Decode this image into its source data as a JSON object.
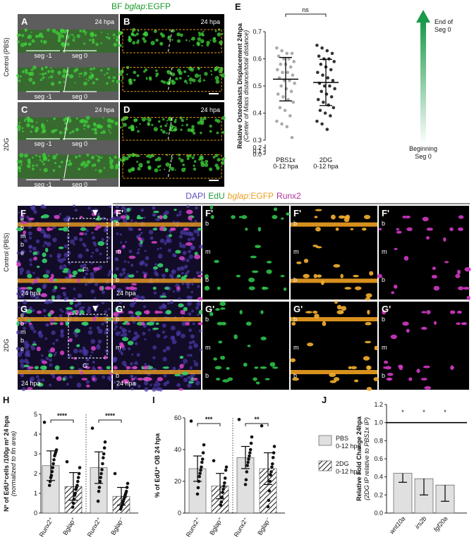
{
  "figure": {
    "title_parts": [
      "BF ",
      "bglap",
      ":EGFP"
    ],
    "rows_top": [
      "Control (PBS)",
      "2DG"
    ],
    "panels_top": [
      {
        "letter": "A",
        "time": "24 hpa",
        "segs": [
          "seg -1",
          "seg 0",
          "seg -1",
          "seg 0"
        ]
      },
      {
        "letter": "B",
        "time": "24 hpa"
      },
      {
        "letter": "C",
        "time": "24 hpa",
        "segs": [
          "seg -1",
          "seg 0",
          "seg -1",
          "seg 0"
        ]
      },
      {
        "letter": "D",
        "time": "24 hpa"
      }
    ],
    "channels": [
      {
        "text": "DAPI",
        "color": "#5b4fc0"
      },
      {
        "text": "EdU",
        "color": "#1c9a3c"
      },
      {
        "text": "bglap",
        "color": "#e8a020",
        "italic": true
      },
      {
        "text": ":EGFP",
        "color": "#e8a020"
      },
      {
        "text": "Runx2",
        "color": "#b0309a"
      }
    ],
    "rows_bottom": [
      "Control (PBS)",
      "2DG"
    ],
    "panels_bottom": [
      {
        "letter": "F",
        "time": "24 hpa",
        "tag": "F'",
        "marks": [
          "e",
          "b",
          "m",
          "b",
          "e"
        ]
      },
      {
        "letter": "F'",
        "time": "24 hpa",
        "marks": [
          "b",
          "m",
          "b"
        ]
      },
      {
        "letter": "F'",
        "marks": [
          "b",
          "m",
          "b"
        ]
      },
      {
        "letter": "F'",
        "marks": [
          "b",
          "m",
          "b"
        ]
      },
      {
        "letter": "F'",
        "marks": [
          "b",
          "m",
          "b"
        ]
      },
      {
        "letter": "G",
        "time": "24 hpa",
        "tag": "G'",
        "marks": [
          "e",
          "b",
          "m",
          "b",
          "e"
        ]
      },
      {
        "letter": "G'",
        "time": "24 hpa",
        "marks": [
          "b",
          "m",
          "b"
        ]
      },
      {
        "letter": "G'",
        "marks": [
          "b",
          "m",
          "b"
        ]
      },
      {
        "letter": "G'",
        "marks": [
          "b",
          "m",
          "b"
        ]
      },
      {
        "letter": "G'",
        "marks": [
          "b",
          "m",
          "b"
        ]
      }
    ],
    "arrow_top": [
      "End of",
      "Seg 0"
    ],
    "arrow_bottom": [
      "Beginning",
      "Seg 0"
    ]
  },
  "chart_data": [
    {
      "type": "strip",
      "letter": "E",
      "ylabel": "Relative Osteoblasts Displacement 24hpa",
      "ylabel_sub": "(Center of Mass distance/total distance)",
      "categories": [
        [
          "PBS1x",
          "0-12 hpa"
        ],
        [
          "2DG",
          "0-12 hpa"
        ]
      ],
      "ylim": [
        0,
        0.7
      ],
      "yticks": [
        {
          "value": 0,
          "label": "0.0"
        },
        0.1,
        0.2,
        0.3,
        0.4,
        0.5,
        0.6,
        0.7
      ],
      "significance": "ns",
      "series": [
        {
          "color": "#aaaaaa",
          "mean": 0.525,
          "sd": 0.08,
          "values": [
            0.64,
            0.63,
            0.62,
            0.62,
            0.61,
            0.6,
            0.6,
            0.59,
            0.58,
            0.58,
            0.57,
            0.56,
            0.55,
            0.55,
            0.54,
            0.53,
            0.52,
            0.52,
            0.51,
            0.5,
            0.49,
            0.48,
            0.47,
            0.46,
            0.45,
            0.44,
            0.42,
            0.41,
            0.39,
            0.37,
            0.36,
            0.35,
            0.31
          ]
        },
        {
          "color": "#333333",
          "mean": 0.513,
          "sd": 0.085,
          "values": [
            0.65,
            0.64,
            0.63,
            0.62,
            0.61,
            0.6,
            0.6,
            0.59,
            0.58,
            0.57,
            0.56,
            0.55,
            0.54,
            0.53,
            0.52,
            0.51,
            0.5,
            0.5,
            0.49,
            0.48,
            0.47,
            0.46,
            0.45,
            0.44,
            0.43,
            0.42,
            0.41,
            0.4,
            0.39,
            0.37,
            0.36,
            0.34
          ]
        }
      ]
    },
    {
      "type": "bar",
      "letter": "H",
      "ylabel": "Nº of EdU⁺cells /100μ m² 24 hpa",
      "ylabel_sub": "(normalized to fin area)",
      "categories": [
        [
          "Runx2⁺",
          "Bglap⁺"
        ],
        [
          "Runx2⁺",
          "Bglap⁻"
        ]
      ],
      "ylim": [
        0,
        5
      ],
      "yticks": [
        0,
        1,
        2,
        3,
        4,
        5
      ],
      "significance": [
        "****",
        "****"
      ],
      "series": [
        {
          "color": "#e0e0e0",
          "values": [
            2.4,
            2.3
          ],
          "errors": [
            0.75,
            0.8
          ],
          "points": [
            [
              4.6,
              3.8,
              3.2,
              3.1,
              3.0,
              2.9,
              2.7,
              2.5,
              2.3,
              2.1,
              1.9,
              1.8,
              1.6,
              1.4
            ],
            [
              4.3,
              3.6,
              3.3,
              3.0,
              2.8,
              2.5,
              2.2,
              2.0,
              1.8,
              1.6,
              1.3,
              1.1,
              0.6
            ]
          ]
        },
        {
          "color": "#e0e0e0",
          "pattern": "hatch",
          "values": [
            1.35,
            0.85
          ],
          "errors": [
            0.7,
            0.45
          ],
          "points": [
            [
              2.6,
              2.3,
              2.0,
              1.8,
              1.6,
              1.4,
              1.3,
              1.2,
              1.0,
              0.9,
              0.7,
              0.5,
              0.3
            ],
            [
              2.0,
              1.5,
              1.3,
              1.1,
              1.0,
              0.9,
              0.8,
              0.7,
              0.6,
              0.5,
              0.4,
              0.3,
              0.2
            ]
          ]
        }
      ]
    },
    {
      "type": "bar",
      "letter": "I",
      "ylabel": "% of EdU⁺ OB 24 hpa",
      "legend": true,
      "categories": [
        [
          "Runx2⁺",
          "Bglap⁺"
        ],
        [
          "Runx2⁺",
          "Bglap⁻"
        ]
      ],
      "ylim": [
        0,
        60
      ],
      "yticks": [
        0,
        20,
        40,
        60
      ],
      "significance": [
        "***",
        "**"
      ],
      "series": [
        {
          "name": "PBS",
          "treatment": "0-12 hpa",
          "color": "#e0e0e0",
          "values": [
            28,
            35
          ],
          "errors": [
            8,
            7
          ],
          "points": [
            [
              58,
              43,
              38,
              34,
              32,
              29,
              27,
              25,
              23,
              20,
              16,
              12
            ],
            [
              59,
              48,
              44,
              40,
              38,
              36,
              34,
              32,
              30,
              26,
              21,
              18
            ]
          ]
        },
        {
          "name": "2DG",
          "treatment": "0-12 hpa",
          "color": "#e0e0e0",
          "pattern": "hatch",
          "values": [
            17,
            28
          ],
          "errors": [
            8,
            10
          ],
          "points": [
            [
              33,
              29,
              27,
              22,
              19,
              17,
              15,
              13,
              10,
              7,
              5
            ],
            [
              55,
              42,
              38,
              35,
              31,
              29,
              26,
              24,
              20,
              14,
              8,
              4
            ]
          ]
        }
      ]
    },
    {
      "type": "bar",
      "letter": "J",
      "ylabel": "Relative Fold Change 24hpa",
      "ylabel_sub": "(2DG IP relative to PBS1x IP)",
      "categories": [
        "wnt10a",
        "irs2b",
        "fgf20a"
      ],
      "ylim": [
        0,
        1.2
      ],
      "yticks": [
        {
          "value": 0,
          "label": "0.0"
        },
        0.2,
        0.4,
        0.6,
        0.8,
        {
          "value": 1,
          "label": "1.0"
        },
        1.2
      ],
      "reference": {
        "value": 1,
        "label": "1.0"
      },
      "significance": [
        "*",
        "*",
        "*"
      ],
      "series": [
        {
          "color": "#e0e0e0",
          "values": [
            0.44,
            0.38,
            0.31
          ],
          "errors": [
            0.1,
            0.18,
            0.18
          ]
        }
      ]
    }
  ]
}
